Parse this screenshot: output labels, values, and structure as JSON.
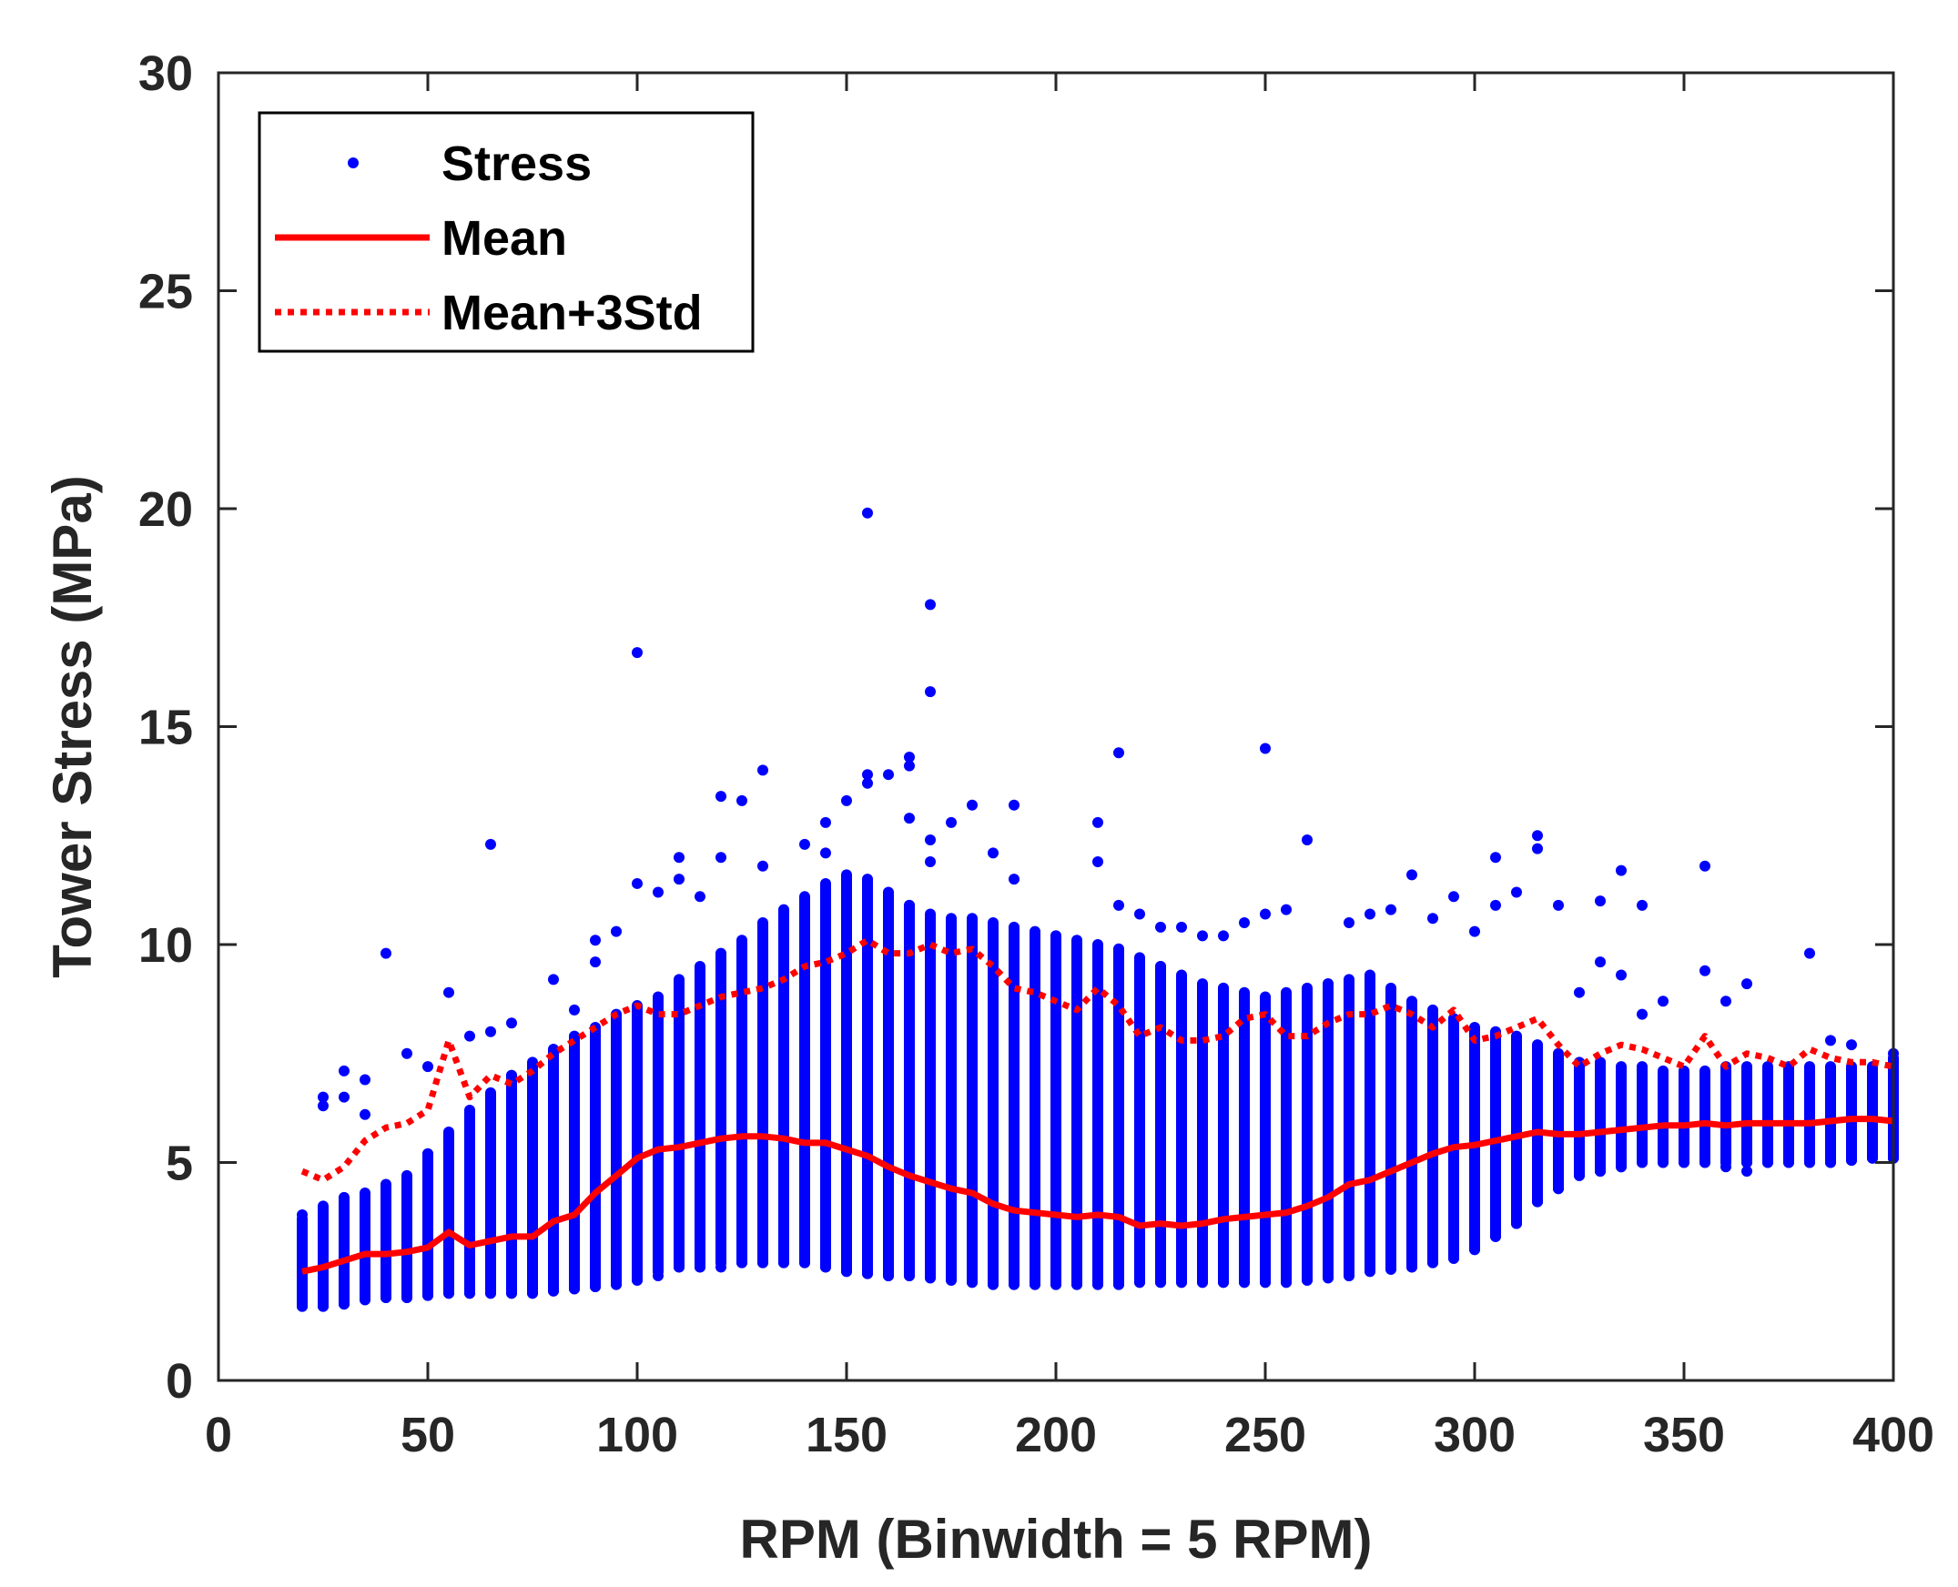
{
  "chart_data": {
    "type": "scatter",
    "xlabel": "RPM (Binwidth = 5 RPM)",
    "ylabel": "Tower Stress (MPa)",
    "xlim": [
      0,
      400
    ],
    "ylim": [
      0,
      30
    ],
    "xticks": [
      0,
      50,
      100,
      150,
      200,
      250,
      300,
      350,
      400
    ],
    "yticks": [
      0,
      5,
      10,
      15,
      20,
      25,
      30
    ],
    "grid": false,
    "legend_position": "top-left",
    "colors": {
      "stress": "#0000ff",
      "mean": "#ff0000",
      "mean_3std": "#ff0000",
      "axes": "#262626"
    },
    "legend": [
      {
        "label": "Stress",
        "style": "marker"
      },
      {
        "label": "Mean",
        "style": "solid-line"
      },
      {
        "label": "Mean+3Std",
        "style": "dotted-line"
      }
    ],
    "series": [
      {
        "name": "Mean",
        "style": "solid",
        "x": [
          20,
          25,
          30,
          35,
          40,
          45,
          50,
          55,
          60,
          65,
          70,
          75,
          80,
          85,
          90,
          95,
          100,
          105,
          110,
          115,
          120,
          125,
          130,
          135,
          140,
          145,
          150,
          155,
          160,
          165,
          170,
          175,
          180,
          185,
          190,
          195,
          200,
          205,
          210,
          215,
          220,
          225,
          230,
          235,
          240,
          245,
          250,
          255,
          260,
          265,
          270,
          275,
          280,
          285,
          290,
          295,
          300,
          305,
          310,
          315,
          320,
          325,
          330,
          335,
          340,
          345,
          350,
          355,
          360,
          365,
          370,
          375,
          380,
          385,
          390,
          395,
          400
        ],
        "y": [
          2.5,
          2.6,
          2.75,
          2.9,
          2.9,
          2.95,
          3.05,
          3.4,
          3.1,
          3.2,
          3.3,
          3.3,
          3.65,
          3.8,
          4.3,
          4.7,
          5.1,
          5.3,
          5.35,
          5.45,
          5.55,
          5.6,
          5.6,
          5.55,
          5.45,
          5.45,
          5.3,
          5.15,
          4.9,
          4.7,
          4.55,
          4.4,
          4.3,
          4.05,
          3.9,
          3.85,
          3.8,
          3.75,
          3.8,
          3.75,
          3.55,
          3.6,
          3.55,
          3.6,
          3.7,
          3.75,
          3.8,
          3.85,
          4.0,
          4.2,
          4.5,
          4.6,
          4.8,
          5.0,
          5.2,
          5.35,
          5.4,
          5.5,
          5.6,
          5.7,
          5.65,
          5.65,
          5.7,
          5.75,
          5.8,
          5.85,
          5.85,
          5.9,
          5.85,
          5.9,
          5.9,
          5.9,
          5.9,
          5.95,
          6.0,
          6.0,
          5.95
        ]
      },
      {
        "name": "Mean+3Std",
        "style": "dotted",
        "x": [
          20,
          25,
          30,
          35,
          40,
          45,
          50,
          55,
          60,
          65,
          70,
          75,
          80,
          85,
          90,
          95,
          100,
          105,
          110,
          115,
          120,
          125,
          130,
          135,
          140,
          145,
          150,
          155,
          160,
          165,
          170,
          175,
          180,
          185,
          190,
          195,
          200,
          205,
          210,
          215,
          220,
          225,
          230,
          235,
          240,
          245,
          250,
          255,
          260,
          265,
          270,
          275,
          280,
          285,
          290,
          295,
          300,
          305,
          310,
          315,
          320,
          325,
          330,
          335,
          340,
          345,
          350,
          355,
          360,
          365,
          370,
          375,
          380,
          385,
          390,
          395,
          400
        ],
        "y": [
          4.8,
          4.6,
          4.9,
          5.5,
          5.8,
          5.9,
          6.2,
          7.8,
          6.5,
          7.0,
          6.8,
          7.1,
          7.5,
          7.8,
          8.1,
          8.4,
          8.6,
          8.4,
          8.4,
          8.6,
          8.8,
          8.9,
          9.0,
          9.2,
          9.5,
          9.6,
          9.8,
          10.1,
          9.8,
          9.8,
          10.0,
          9.8,
          9.9,
          9.5,
          9.0,
          8.9,
          8.7,
          8.5,
          9.0,
          8.6,
          7.9,
          8.1,
          7.8,
          7.8,
          7.9,
          8.3,
          8.4,
          7.9,
          7.9,
          8.2,
          8.4,
          8.4,
          8.6,
          8.4,
          8.1,
          8.5,
          7.8,
          7.9,
          8.1,
          8.3,
          7.7,
          7.2,
          7.5,
          7.7,
          7.6,
          7.4,
          7.2,
          7.9,
          7.2,
          7.5,
          7.4,
          7.2,
          7.6,
          7.4,
          7.3,
          7.3,
          7.2
        ]
      },
      {
        "name": "Stress",
        "style": "markers",
        "bin_x": [
          20,
          25,
          30,
          35,
          40,
          45,
          50,
          55,
          60,
          65,
          70,
          75,
          80,
          85,
          90,
          95,
          100,
          105,
          110,
          115,
          120,
          125,
          130,
          135,
          140,
          145,
          150,
          155,
          160,
          165,
          170,
          175,
          180,
          185,
          190,
          195,
          200,
          205,
          210,
          215,
          220,
          225,
          230,
          235,
          240,
          245,
          250,
          255,
          260,
          265,
          270,
          275,
          280,
          285,
          290,
          295,
          300,
          305,
          310,
          315,
          320,
          325,
          330,
          335,
          340,
          345,
          350,
          355,
          360,
          365,
          370,
          375,
          380,
          385,
          390,
          395,
          400
        ],
        "bin_min": [
          1.7,
          1.7,
          1.75,
          1.85,
          1.9,
          1.9,
          1.95,
          2.0,
          2.0,
          2.0,
          2.0,
          2.0,
          2.05,
          2.1,
          2.15,
          2.2,
          2.3,
          2.5,
          2.6,
          2.6,
          2.7,
          2.7,
          2.7,
          2.7,
          2.7,
          2.6,
          2.5,
          2.45,
          2.4,
          2.4,
          2.35,
          2.3,
          2.25,
          2.2,
          2.2,
          2.2,
          2.2,
          2.2,
          2.2,
          2.2,
          2.25,
          2.25,
          2.25,
          2.25,
          2.25,
          2.25,
          2.25,
          2.25,
          2.3,
          2.35,
          2.4,
          2.5,
          2.55,
          2.6,
          2.7,
          2.8,
          3.0,
          3.3,
          3.6,
          4.1,
          4.4,
          4.7,
          4.8,
          4.9,
          5.0,
          5.0,
          5.0,
          5.0,
          5.0,
          5.0,
          5.0,
          5.0,
          5.0,
          5.0,
          5.05,
          5.1,
          5.1
        ],
        "bin_max": [
          3.7,
          4.0,
          4.2,
          4.3,
          4.5,
          4.7,
          5.2,
          5.7,
          6.2,
          6.6,
          7.0,
          7.3,
          7.6,
          7.9,
          8.1,
          8.4,
          8.6,
          8.8,
          9.2,
          9.5,
          9.8,
          10.1,
          10.5,
          10.8,
          11.1,
          11.4,
          11.6,
          11.5,
          11.2,
          10.9,
          10.7,
          10.6,
          10.6,
          10.5,
          10.4,
          10.3,
          10.2,
          10.1,
          10.0,
          9.9,
          9.7,
          9.5,
          9.3,
          9.1,
          9.0,
          8.9,
          8.8,
          8.9,
          9.0,
          9.1,
          9.2,
          9.3,
          9.0,
          8.7,
          8.5,
          8.3,
          8.1,
          8.0,
          7.9,
          7.7,
          7.5,
          7.3,
          7.3,
          7.2,
          7.2,
          7.1,
          7.1,
          7.1,
          7.2,
          7.2,
          7.2,
          7.2,
          7.2,
          7.2,
          7.2,
          7.2,
          7.4
        ],
        "outliers": [
          [
            20,
            3.8
          ],
          [
            25,
            6.5
          ],
          [
            25,
            6.3
          ],
          [
            30,
            7.1
          ],
          [
            30,
            6.5
          ],
          [
            35,
            6.9
          ],
          [
            35,
            6.1
          ],
          [
            40,
            9.8
          ],
          [
            45,
            7.5
          ],
          [
            50,
            7.2
          ],
          [
            55,
            8.9
          ],
          [
            60,
            7.9
          ],
          [
            65,
            12.3
          ],
          [
            65,
            8.0
          ],
          [
            70,
            8.2
          ],
          [
            80,
            9.2
          ],
          [
            85,
            8.5
          ],
          [
            90,
            10.1
          ],
          [
            90,
            9.6
          ],
          [
            95,
            10.3
          ],
          [
            100,
            16.7
          ],
          [
            100,
            11.4
          ],
          [
            105,
            11.2
          ],
          [
            110,
            12.0
          ],
          [
            110,
            11.5
          ],
          [
            115,
            11.1
          ],
          [
            120,
            13.4
          ],
          [
            120,
            12.0
          ],
          [
            125,
            13.3
          ],
          [
            130,
            14.0
          ],
          [
            130,
            11.8
          ],
          [
            140,
            12.3
          ],
          [
            145,
            12.8
          ],
          [
            145,
            12.1
          ],
          [
            150,
            13.3
          ],
          [
            155,
            19.9
          ],
          [
            155,
            13.9
          ],
          [
            155,
            13.7
          ],
          [
            160,
            13.9
          ],
          [
            165,
            14.3
          ],
          [
            165,
            14.1
          ],
          [
            165,
            12.9
          ],
          [
            170,
            17.8
          ],
          [
            170,
            15.8
          ],
          [
            170,
            12.4
          ],
          [
            170,
            11.9
          ],
          [
            175,
            12.8
          ],
          [
            180,
            13.2
          ],
          [
            185,
            12.1
          ],
          [
            190,
            13.2
          ],
          [
            190,
            11.5
          ],
          [
            210,
            12.8
          ],
          [
            210,
            11.9
          ],
          [
            215,
            14.4
          ],
          [
            215,
            10.9
          ],
          [
            220,
            10.7
          ],
          [
            225,
            10.4
          ],
          [
            230,
            10.4
          ],
          [
            235,
            10.2
          ],
          [
            240,
            10.2
          ],
          [
            245,
            10.5
          ],
          [
            250,
            14.5
          ],
          [
            250,
            10.7
          ],
          [
            255,
            10.8
          ],
          [
            260,
            12.4
          ],
          [
            270,
            10.5
          ],
          [
            275,
            10.7
          ],
          [
            280,
            10.8
          ],
          [
            285,
            11.6
          ],
          [
            290,
            10.6
          ],
          [
            295,
            11.1
          ],
          [
            300,
            10.3
          ],
          [
            305,
            12.0
          ],
          [
            305,
            10.9
          ],
          [
            310,
            11.2
          ],
          [
            315,
            12.5
          ],
          [
            315,
            12.2
          ],
          [
            320,
            10.9
          ],
          [
            325,
            8.9
          ],
          [
            330,
            11.0
          ],
          [
            330,
            9.6
          ],
          [
            335,
            11.7
          ],
          [
            335,
            9.3
          ],
          [
            340,
            10.9
          ],
          [
            340,
            8.4
          ],
          [
            345,
            8.7
          ],
          [
            355,
            11.8
          ],
          [
            355,
            9.4
          ],
          [
            360,
            8.7
          ],
          [
            365,
            9.1
          ],
          [
            380,
            9.8
          ],
          [
            385,
            7.8
          ],
          [
            390,
            7.7
          ],
          [
            400,
            7.5
          ],
          [
            360,
            4.9
          ],
          [
            365,
            4.8
          ],
          [
            300,
            3.1
          ],
          [
            305,
            3.4
          ],
          [
            310,
            3.6
          ],
          [
            115,
            2.7
          ],
          [
            110,
            2.9
          ],
          [
            105,
            2.4
          ],
          [
            120,
            2.6
          ]
        ]
      }
    ]
  }
}
